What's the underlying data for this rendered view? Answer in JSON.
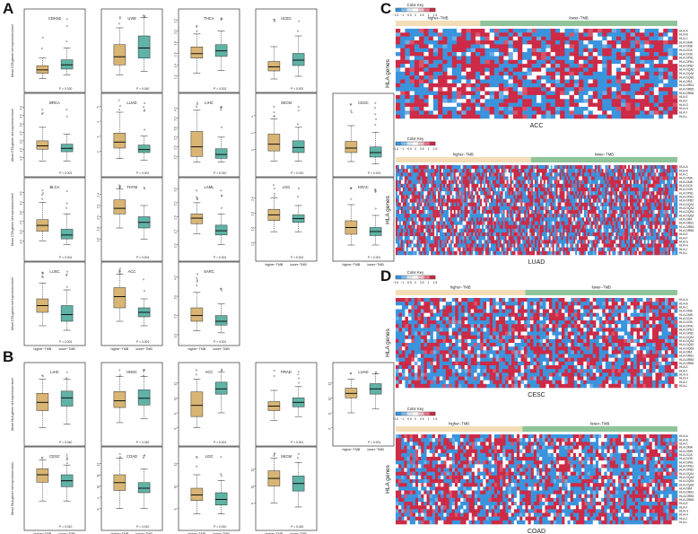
{
  "panel_labels": {
    "A": "A",
    "B": "B",
    "C": "C",
    "D": "D"
  },
  "colors": {
    "higher": "#d9b574",
    "lower": "#5fb3a6",
    "heat_low": "#3a93dd",
    "heat_high": "#cc2a46",
    "heat_mid": "#ffffff",
    "bar_higher": "#f3dcb6",
    "bar_lower": "#8fc49a"
  },
  "groups": {
    "higher": "higher−TMB",
    "lower": "lower−TMB"
  },
  "box_ylabels": {
    "cta": "Mean CTA genes set expression level",
    "hla": "Mean HLA genes set expression level"
  },
  "boxplots_A": [
    {
      "cancer": "CDKN2",
      "p": "P = 0.020",
      "ylim": [
        0,
        4
      ],
      "ticks": [],
      "higher": {
        "min": 0.2,
        "q1": 0.5,
        "med": 0.7,
        "q3": 0.95,
        "max": 1.4
      },
      "lower": {
        "min": 0.4,
        "q1": 0.75,
        "med": 1.0,
        "q3": 1.3,
        "max": 2.0
      }
    },
    {
      "cancer": "UVM",
      "p": "P = 0.040",
      "ylim": [
        1.2,
        2.2
      ],
      "ticks": [],
      "higher": {
        "min": 1.3,
        "q1": 1.45,
        "med": 1.57,
        "q3": 1.75,
        "max": 2.0
      },
      "lower": {
        "min": 1.35,
        "q1": 1.55,
        "med": 1.7,
        "q3": 1.88,
        "max": 2.15
      }
    },
    {
      "cancer": "THCA",
      "p": "P = 0.002",
      "ylim": [
        1.1,
        2.3
      ],
      "ticks": [
        "1.2",
        "1.4",
        "1.6",
        "1.8",
        "2.0",
        "2.2"
      ],
      "higher": {
        "min": 1.25,
        "q1": 1.52,
        "med": 1.6,
        "q3": 1.72,
        "max": 1.95
      },
      "lower": {
        "min": 1.3,
        "q1": 1.55,
        "med": 1.65,
        "q3": 1.76,
        "max": 2.0
      }
    },
    {
      "cancer": "UCEC",
      "p": "P < 0.001",
      "ylim": [
        1.0,
        3.5
      ],
      "ticks": [],
      "higher": {
        "min": 1.1,
        "q1": 1.4,
        "med": 1.55,
        "q3": 1.75,
        "max": 2.3
      },
      "lower": {
        "min": 1.2,
        "q1": 1.6,
        "med": 1.8,
        "q3": 2.05,
        "max": 2.7
      }
    },
    {
      "cancer": "BRCA",
      "p": "P < 0.001",
      "ylim": [
        0.5,
        4.5
      ],
      "ticks": [
        "1.0",
        "1.5",
        "2.0",
        "2.5",
        "3.0",
        "3.5",
        "4.0"
      ],
      "higher": {
        "min": 0.8,
        "q1": 1.5,
        "med": 1.7,
        "q3": 2.0,
        "max": 2.8
      },
      "lower": {
        "min": 0.8,
        "q1": 1.35,
        "med": 1.55,
        "q3": 1.8,
        "max": 2.4
      }
    },
    {
      "cancer": "LUAD",
      "p": "P < 0.001",
      "ylim": [
        1.0,
        5.5
      ],
      "ticks": [
        "2",
        "3",
        "4",
        "5"
      ],
      "higher": {
        "min": 1.5,
        "q1": 2.2,
        "med": 2.6,
        "q3": 3.2,
        "max": 4.6
      },
      "lower": {
        "min": 1.4,
        "q1": 1.9,
        "med": 2.1,
        "q3": 2.4,
        "max": 3.0
      }
    },
    {
      "cancer": "LIHC",
      "p": "P = 0.010",
      "ylim": [
        1.0,
        4.5
      ],
      "ticks": [
        "1.5",
        "2.0",
        "2.5",
        "3.0",
        "3.5",
        "4.0"
      ],
      "higher": {
        "min": 1.2,
        "q1": 1.5,
        "med": 2.0,
        "q3": 2.8,
        "max": 3.9
      },
      "lower": {
        "min": 1.2,
        "q1": 1.4,
        "med": 1.6,
        "q3": 1.9,
        "max": 2.5
      }
    },
    {
      "cancer": "SKCM",
      "p": "P = 0.010",
      "ylim": [
        1.0,
        5.0
      ],
      "ticks": [
        "2",
        "3",
        "4"
      ],
      "higher": {
        "min": 1.3,
        "q1": 1.9,
        "med": 2.3,
        "q3": 2.9,
        "max": 3.8
      },
      "lower": {
        "min": 1.3,
        "q1": 1.8,
        "med": 2.1,
        "q3": 2.5,
        "max": 3.3
      }
    },
    {
      "cancer": "CESC",
      "p": "P < 0.001",
      "ylim": [
        1.0,
        4.0
      ],
      "ticks": [],
      "higher": {
        "min": 1.2,
        "q1": 1.6,
        "med": 1.8,
        "q3": 2.1,
        "max": 2.8
      },
      "lower": {
        "min": 1.1,
        "q1": 1.4,
        "med": 1.6,
        "q3": 1.85,
        "max": 2.5
      }
    },
    {
      "cancer": "BLCA",
      "p": "P < 0.001",
      "ylim": [
        1.0,
        4.5
      ],
      "ticks": [
        "1.5",
        "2.0",
        "2.5",
        "3.0",
        "3.5",
        "4.0"
      ],
      "higher": {
        "min": 1.5,
        "q1": 2.0,
        "med": 2.3,
        "q3": 2.6,
        "max": 3.5
      },
      "lower": {
        "min": 1.3,
        "q1": 1.6,
        "med": 1.8,
        "q3": 2.1,
        "max": 2.9
      }
    },
    {
      "cancer": "THYM",
      "p": "P < 0.001",
      "ylim": [
        1.4,
        2.6
      ],
      "ticks": [
        "1.6",
        "1.8",
        "2.0",
        "2.2",
        "2.4"
      ],
      "higher": {
        "min": 1.8,
        "q1": 2.05,
        "med": 2.15,
        "q3": 2.3,
        "max": 2.5
      },
      "lower": {
        "min": 1.6,
        "q1": 1.8,
        "med": 1.9,
        "q3": 2.0,
        "max": 2.2
      }
    },
    {
      "cancer": "LAML",
      "p": "P < 0.001",
      "ylim": [
        0.8,
        3.2
      ],
      "ticks": [
        "1.0",
        "1.5",
        "2.0",
        "2.5",
        "3.0"
      ],
      "higher": {
        "min": 1.4,
        "q1": 1.75,
        "med": 1.95,
        "q3": 2.1,
        "max": 2.5
      },
      "lower": {
        "min": 1.0,
        "q1": 1.35,
        "med": 1.5,
        "q3": 1.7,
        "max": 2.1
      }
    },
    {
      "cancer": "LGG",
      "p": "P < 0.001",
      "ylim": [
        1.0,
        2.8
      ],
      "ticks": [
        "1.2",
        "1.6",
        "2.0",
        "2.4"
      ],
      "higher": {
        "min": 1.5,
        "q1": 1.8,
        "med": 1.95,
        "q3": 2.1,
        "max": 2.4
      },
      "lower": {
        "min": 1.5,
        "q1": 1.75,
        "med": 1.85,
        "q3": 1.95,
        "max": 2.2
      }
    },
    {
      "cancer": "KRAC",
      "p": "P < 0.001",
      "ylim": [
        1.0,
        3.5
      ],
      "ticks": [],
      "higher": {
        "min": 1.2,
        "q1": 1.6,
        "med": 1.85,
        "q3": 2.1,
        "max": 2.7
      },
      "lower": {
        "min": 1.2,
        "q1": 1.55,
        "med": 1.7,
        "q3": 1.85,
        "max": 2.3
      }
    },
    {
      "cancer": "LUSC",
      "p": "P < 0.001",
      "ylim": [
        1.0,
        4.0
      ],
      "ticks": [],
      "higher": {
        "min": 1.4,
        "q1": 2.0,
        "med": 2.3,
        "q3": 2.6,
        "max": 3.3
      },
      "lower": {
        "min": 1.2,
        "q1": 1.6,
        "med": 1.9,
        "q3": 2.3,
        "max": 3.0
      }
    },
    {
      "cancer": "ACC",
      "p": "P < 0.001",
      "ylim": [
        1.0,
        4.0
      ],
      "ticks": [],
      "higher": {
        "min": 1.6,
        "q1": 2.2,
        "med": 2.7,
        "q3": 3.1,
        "max": 3.7
      },
      "lower": {
        "min": 1.4,
        "q1": 1.8,
        "med": 2.0,
        "q3": 2.2,
        "max": 2.6
      }
    },
    {
      "cancer": "SARC",
      "p": "P < 0.001",
      "ylim": [
        1.0,
        4.5
      ],
      "ticks": [
        "1.0",
        "2.0",
        "3.0",
        "4.0"
      ],
      "higher": {
        "min": 1.2,
        "q1": 1.7,
        "med": 2.0,
        "q3": 2.4,
        "max": 3.2
      },
      "lower": {
        "min": 1.1,
        "q1": 1.5,
        "med": 1.7,
        "q3": 2.0,
        "max": 2.6
      }
    }
  ],
  "boxplots_B": [
    {
      "cancer": "LIHC",
      "p": "P = 0.040",
      "ylim": [
        5,
        14
      ],
      "ticks": [],
      "higher": {
        "min": 6,
        "q1": 8.3,
        "med": 9.4,
        "q3": 10.6,
        "max": 12.5
      },
      "lower": {
        "min": 6.5,
        "q1": 8.9,
        "med": 10.0,
        "q3": 10.9,
        "max": 12.5
      }
    },
    {
      "cancer": "HNSC",
      "p": "P = 0.040",
      "ylim": [
        6,
        14
      ],
      "ticks": [],
      "higher": {
        "min": 7.5,
        "q1": 9.3,
        "med": 10.1,
        "q3": 11.2,
        "max": 13.0
      },
      "lower": {
        "min": 8.0,
        "q1": 9.6,
        "med": 10.4,
        "q3": 11.4,
        "max": 13.0
      }
    },
    {
      "cancer": "ACC",
      "p": "P < 0.001",
      "ylim": [
        5,
        14
      ],
      "ticks": [
        "6",
        "8",
        "10",
        "12"
      ],
      "higher": {
        "min": 6,
        "q1": 7.5,
        "med": 9.0,
        "q3": 10.8,
        "max": 12.5
      },
      "lower": {
        "min": 8,
        "q1": 10.5,
        "med": 11.2,
        "q3": 12.1,
        "max": 13.5
      }
    },
    {
      "cancer": "PRAD",
      "p": "P < 0.001",
      "ylim": [
        5,
        14
      ],
      "ticks": [],
      "higher": {
        "min": 7,
        "q1": 8.3,
        "med": 8.9,
        "q3": 9.5,
        "max": 11
      },
      "lower": {
        "min": 7.5,
        "q1": 8.8,
        "med": 9.4,
        "q3": 10.0,
        "max": 11.5
      }
    },
    {
      "cancer": "LUAD",
      "p": "P < 0.001",
      "ylim": [
        5,
        14
      ],
      "ticks": [
        "6",
        "8",
        "10",
        "12"
      ],
      "higher": {
        "min": 8,
        "q1": 10.0,
        "med": 10.6,
        "q3": 11.3,
        "max": 12.5
      },
      "lower": {
        "min": 8.5,
        "q1": 10.5,
        "med": 11.2,
        "q3": 11.9,
        "max": 13.2
      }
    },
    {
      "cancer": "CESC",
      "p": "P = 0.010",
      "ylim": [
        5,
        14
      ],
      "ticks": [],
      "higher": {
        "min": 7.5,
        "q1": 10.0,
        "med": 11.0,
        "q3": 11.8,
        "max": 13.0
      },
      "lower": {
        "min": 7.5,
        "q1": 9.4,
        "med": 10.2,
        "q3": 11.0,
        "max": 12.3
      }
    },
    {
      "cancer": "COAD",
      "p": "P = 0.010",
      "ylim": [
        7,
        13
      ],
      "ticks": [
        "8",
        "9",
        "10",
        "11",
        "12"
      ],
      "higher": {
        "min": 8,
        "q1": 9.6,
        "med": 10.3,
        "q3": 11.0,
        "max": 12.5
      },
      "lower": {
        "min": 8,
        "q1": 9.4,
        "med": 9.8,
        "q3": 10.3,
        "max": 11.5
      }
    },
    {
      "cancer": "LGG",
      "p": "P = 0.010",
      "ylim": [
        7,
        13
      ],
      "ticks": [
        "8",
        "10",
        "12"
      ],
      "higher": {
        "min": 7.5,
        "q1": 8.7,
        "med": 9.2,
        "q3": 9.8,
        "max": 11
      },
      "lower": {
        "min": 7.5,
        "q1": 8.3,
        "med": 8.8,
        "q3": 9.4,
        "max": 10.5
      }
    },
    {
      "cancer": "SKCM",
      "p": "P = 0.040",
      "ylim": [
        6,
        14
      ],
      "ticks": [
        "8",
        "10",
        "12"
      ],
      "higher": {
        "min": 8,
        "q1": 10.0,
        "med": 10.9,
        "q3": 11.8,
        "max": 13.3
      },
      "lower": {
        "min": 7.5,
        "q1": 9.4,
        "med": 10.3,
        "q3": 11.2,
        "max": 12.8
      }
    }
  ],
  "color_key": {
    "title": "Color Key",
    "ticks": [
      "−1.5",
      "−1",
      "−0.5",
      "0",
      "0.5",
      "1",
      "1.5"
    ]
  },
  "heatmaps": {
    "C_top": {
      "cancer": "ACC",
      "ylabel": "HLA genes",
      "rows": [
        "HLA-A",
        "HLA-B",
        "HLA-C",
        "HLA-DMA",
        "HLA-DMB",
        "HLA-DOA",
        "HLA-DOB",
        "HLA-DPA1",
        "HLA-DPB1",
        "HLA-DPB2",
        "HLA-DQA1",
        "HLA-DQA2",
        "HLA-DQB1",
        "HLA-DRA",
        "HLA-DRB1",
        "HLA-DRB5",
        "HLA-DRB6",
        "HLA-E",
        "HLA-F",
        "HLA-G",
        "HLA-H",
        "HLA-J",
        "HLA-L"
      ]
    },
    "C_bottom": {
      "cancer": "LUAD",
      "ylabel": "HLA genes",
      "rows": [
        "HLA-A",
        "HLA-B",
        "HLA-C",
        "HLA-DMA",
        "HLA-DMB",
        "HLA-DOA",
        "HLA-DOB",
        "HLA-DPA1",
        "HLA-DPB1",
        "HLA-DPB2",
        "HLA-DQA1",
        "HLA-DQA2",
        "HLA-DQB1",
        "HLA-DQB2",
        "HLA-DRA",
        "HLA-DRB1",
        "HLA-DRB5",
        "HLA-DRB6",
        "HLA-E",
        "HLA-F",
        "HLA-G",
        "HLA-H",
        "HLA-J",
        "HLA-L"
      ]
    },
    "D_top": {
      "cancer": "CESC",
      "ylabel": "HLA genes",
      "rows": [
        "HLA-A",
        "HLA-B",
        "HLA-C",
        "HLA-DMA",
        "HLA-DMB",
        "HLA-DOA",
        "HLA-DOB",
        "HLA-DPA1",
        "HLA-DPB1",
        "HLA-DPB2",
        "HLA-DQA1",
        "HLA-DQA2",
        "HLA-DQB1",
        "HLA-DQB2",
        "HLA-DRA",
        "HLA-DRB1",
        "HLA-DRB5",
        "HLA-DRB6",
        "HLA-E",
        "HLA-F",
        "HLA-G",
        "HLA-H",
        "HLA-J",
        "HLA-L"
      ]
    },
    "D_bottom": {
      "cancer": "COAD",
      "ylabel": "HLA genes",
      "rows": [
        "HLA-A",
        "HLA-B",
        "HLA-C",
        "HLA-DMA",
        "HLA-DMB",
        "HLA-DOA",
        "HLA-DOB",
        "HLA-DPA1",
        "HLA-DPB1",
        "HLA-DPB2",
        "HLA-DQA1",
        "HLA-DQA2",
        "HLA-DQB1",
        "HLA-DQB2",
        "HLA-DRA",
        "HLA-DRB1",
        "HLA-DRB5",
        "HLA-DRB6",
        "HLA-E",
        "HLA-F",
        "HLA-G",
        "HLA-H",
        "HLA-J",
        "HLA-L"
      ]
    }
  }
}
